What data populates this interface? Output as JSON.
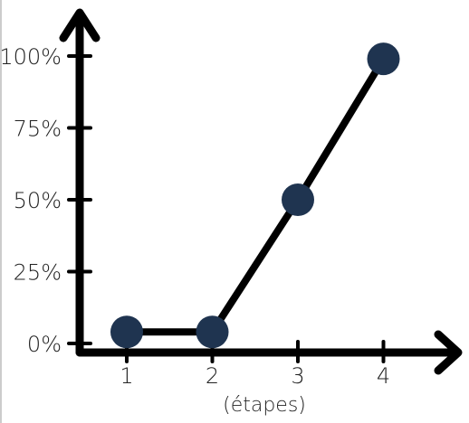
{
  "chart_data": {
    "type": "line",
    "categories": [
      "1",
      "2",
      "3",
      "4"
    ],
    "series": [
      {
        "values": [
          4,
          4,
          50,
          99
        ]
      }
    ],
    "y_ticks": [
      "0%",
      "25%",
      "50%",
      "75%",
      "100%"
    ],
    "y_tick_values": [
      0,
      25,
      50,
      75,
      100
    ],
    "xlabel": "(étapes)",
    "ylabel": "",
    "title": "",
    "ylim": [
      0,
      100
    ],
    "grid": false,
    "legend": "none"
  },
  "colors": {
    "axis": "#000000",
    "line": "#000000",
    "marker": "#1f3450",
    "text": "#222222",
    "frame": "#9a9a9a"
  }
}
